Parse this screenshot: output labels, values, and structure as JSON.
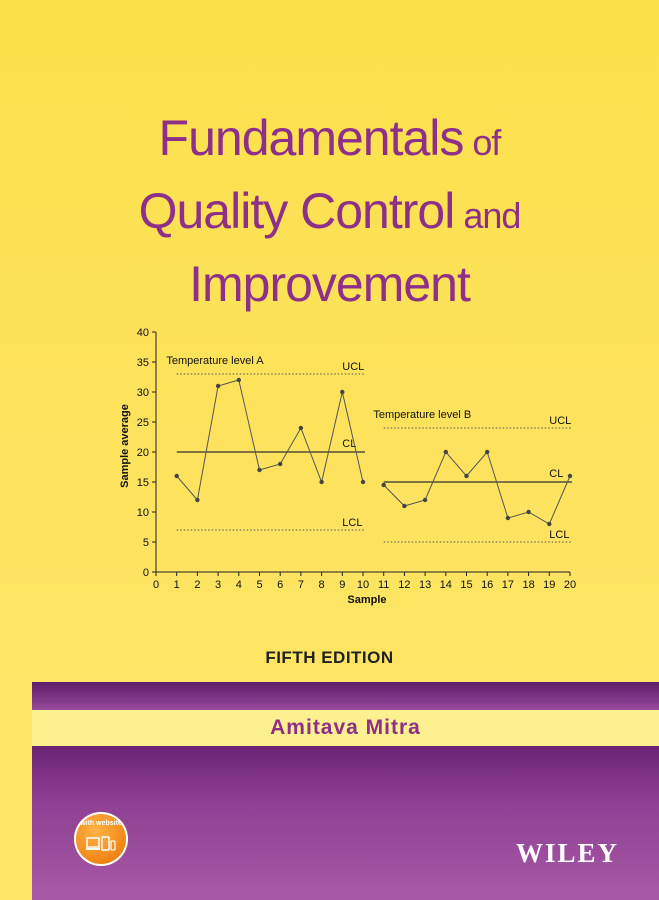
{
  "book": {
    "title_line1_big": "Fundamentals",
    "title_line1_small": " of",
    "title_line2_big": "Quality Control",
    "title_line2_small": " and",
    "title_line3_big": "Improvement",
    "edition": "FIFTH EDITION",
    "author": "Amitava Mitra",
    "publisher": "WILEY",
    "badge_text": "with website"
  },
  "colors": {
    "title": "#8e2f8a",
    "purple_band": "#8f3f92",
    "author_band": "#fdf08e",
    "background": "#fde25c"
  },
  "chart_data": {
    "type": "line",
    "xlabel": "Sample",
    "ylabel": "Sample average",
    "xlim": [
      0,
      20
    ],
    "ylim": [
      0,
      40
    ],
    "xticks": [
      0,
      1,
      2,
      3,
      4,
      5,
      6,
      7,
      8,
      9,
      10,
      11,
      12,
      13,
      14,
      15,
      16,
      17,
      18,
      19,
      20
    ],
    "yticks": [
      0,
      5,
      10,
      15,
      20,
      25,
      30,
      35,
      40
    ],
    "grid": false,
    "series": [
      {
        "name": "Temperature level A",
        "x": [
          1,
          2,
          3,
          4,
          5,
          6,
          7,
          8,
          9,
          10
        ],
        "y": [
          16,
          12,
          31,
          32,
          17,
          18,
          24,
          15,
          30,
          15
        ],
        "UCL": 33,
        "CL": 20,
        "LCL": 7
      },
      {
        "name": "Temperature level B",
        "x": [
          11,
          12,
          13,
          14,
          15,
          16,
          17,
          18,
          19,
          20
        ],
        "y": [
          14.5,
          11,
          12,
          20,
          16,
          20,
          9,
          10,
          8,
          16
        ],
        "UCL": 24,
        "CL": 15,
        "LCL": 5
      }
    ],
    "limit_labels": {
      "ucl": "UCL",
      "cl": "CL",
      "lcl": "LCL"
    }
  }
}
